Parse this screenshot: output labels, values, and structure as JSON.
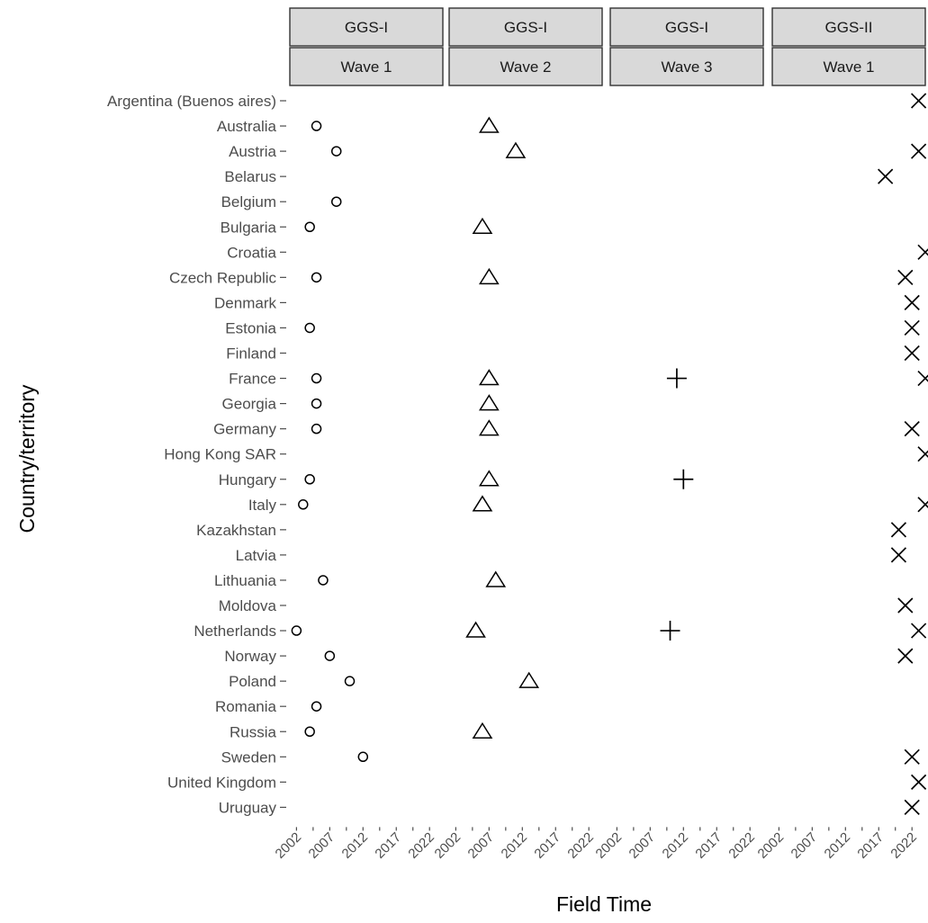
{
  "chart_data": {
    "type": "scatter",
    "facet": "faceted dot plot",
    "xlabel": "Field Time",
    "ylabel": "Country/territory",
    "xlim": [
      2001,
      2024
    ],
    "x_ticks": [
      2002,
      2007,
      2012,
      2017,
      2022
    ],
    "grid": false,
    "panels": [
      {
        "program": "GGS-I",
        "wave": "Wave 1",
        "marker": "circle"
      },
      {
        "program": "GGS-I",
        "wave": "Wave 2",
        "marker": "triangle"
      },
      {
        "program": "GGS-I",
        "wave": "Wave 3",
        "marker": "plus"
      },
      {
        "program": "GGS-II",
        "wave": "Wave 1",
        "marker": "cross"
      }
    ],
    "countries": [
      "Argentina (Buenos aires)",
      "Australia",
      "Austria",
      "Belarus",
      "Belgium",
      "Bulgaria",
      "Croatia",
      "Czech Republic",
      "Denmark",
      "Estonia",
      "Finland",
      "France",
      "Georgia",
      "Germany",
      "Hong Kong SAR",
      "Hungary",
      "Italy",
      "Kazakhstan",
      "Latvia",
      "Lithuania",
      "Moldova",
      "Netherlands",
      "Norway",
      "Poland",
      "Romania",
      "Russia",
      "Sweden",
      "United Kingdom",
      "Uruguay"
    ],
    "series": [
      {
        "values": [
          null,
          2005,
          2008,
          null,
          2008,
          2004,
          null,
          2005,
          null,
          2004,
          null,
          2005,
          2005,
          2005,
          null,
          2004,
          2003,
          null,
          null,
          2006,
          null,
          2002,
          2007,
          2010,
          2005,
          2004,
          2012,
          null,
          null
        ]
      },
      {
        "values": [
          null,
          2007,
          2011,
          null,
          null,
          2006,
          null,
          2007,
          null,
          null,
          null,
          2007,
          2007,
          2007,
          null,
          2007,
          2006,
          null,
          null,
          2008,
          null,
          2005,
          null,
          2013,
          null,
          2006,
          null,
          null,
          null
        ]
      },
      {
        "values": [
          null,
          null,
          null,
          null,
          null,
          null,
          null,
          null,
          null,
          null,
          null,
          2011,
          null,
          null,
          null,
          2012,
          null,
          null,
          null,
          null,
          null,
          2010,
          null,
          null,
          null,
          null,
          null,
          null,
          null
        ]
      },
      {
        "values": [
          2023,
          null,
          2023,
          2018,
          null,
          null,
          2024,
          2021,
          2022,
          2022,
          2022,
          2024,
          null,
          2022,
          2024,
          null,
          2024,
          2020,
          2020,
          null,
          2021,
          2023,
          2021,
          null,
          null,
          null,
          2022,
          2023,
          2022
        ]
      }
    ]
  }
}
